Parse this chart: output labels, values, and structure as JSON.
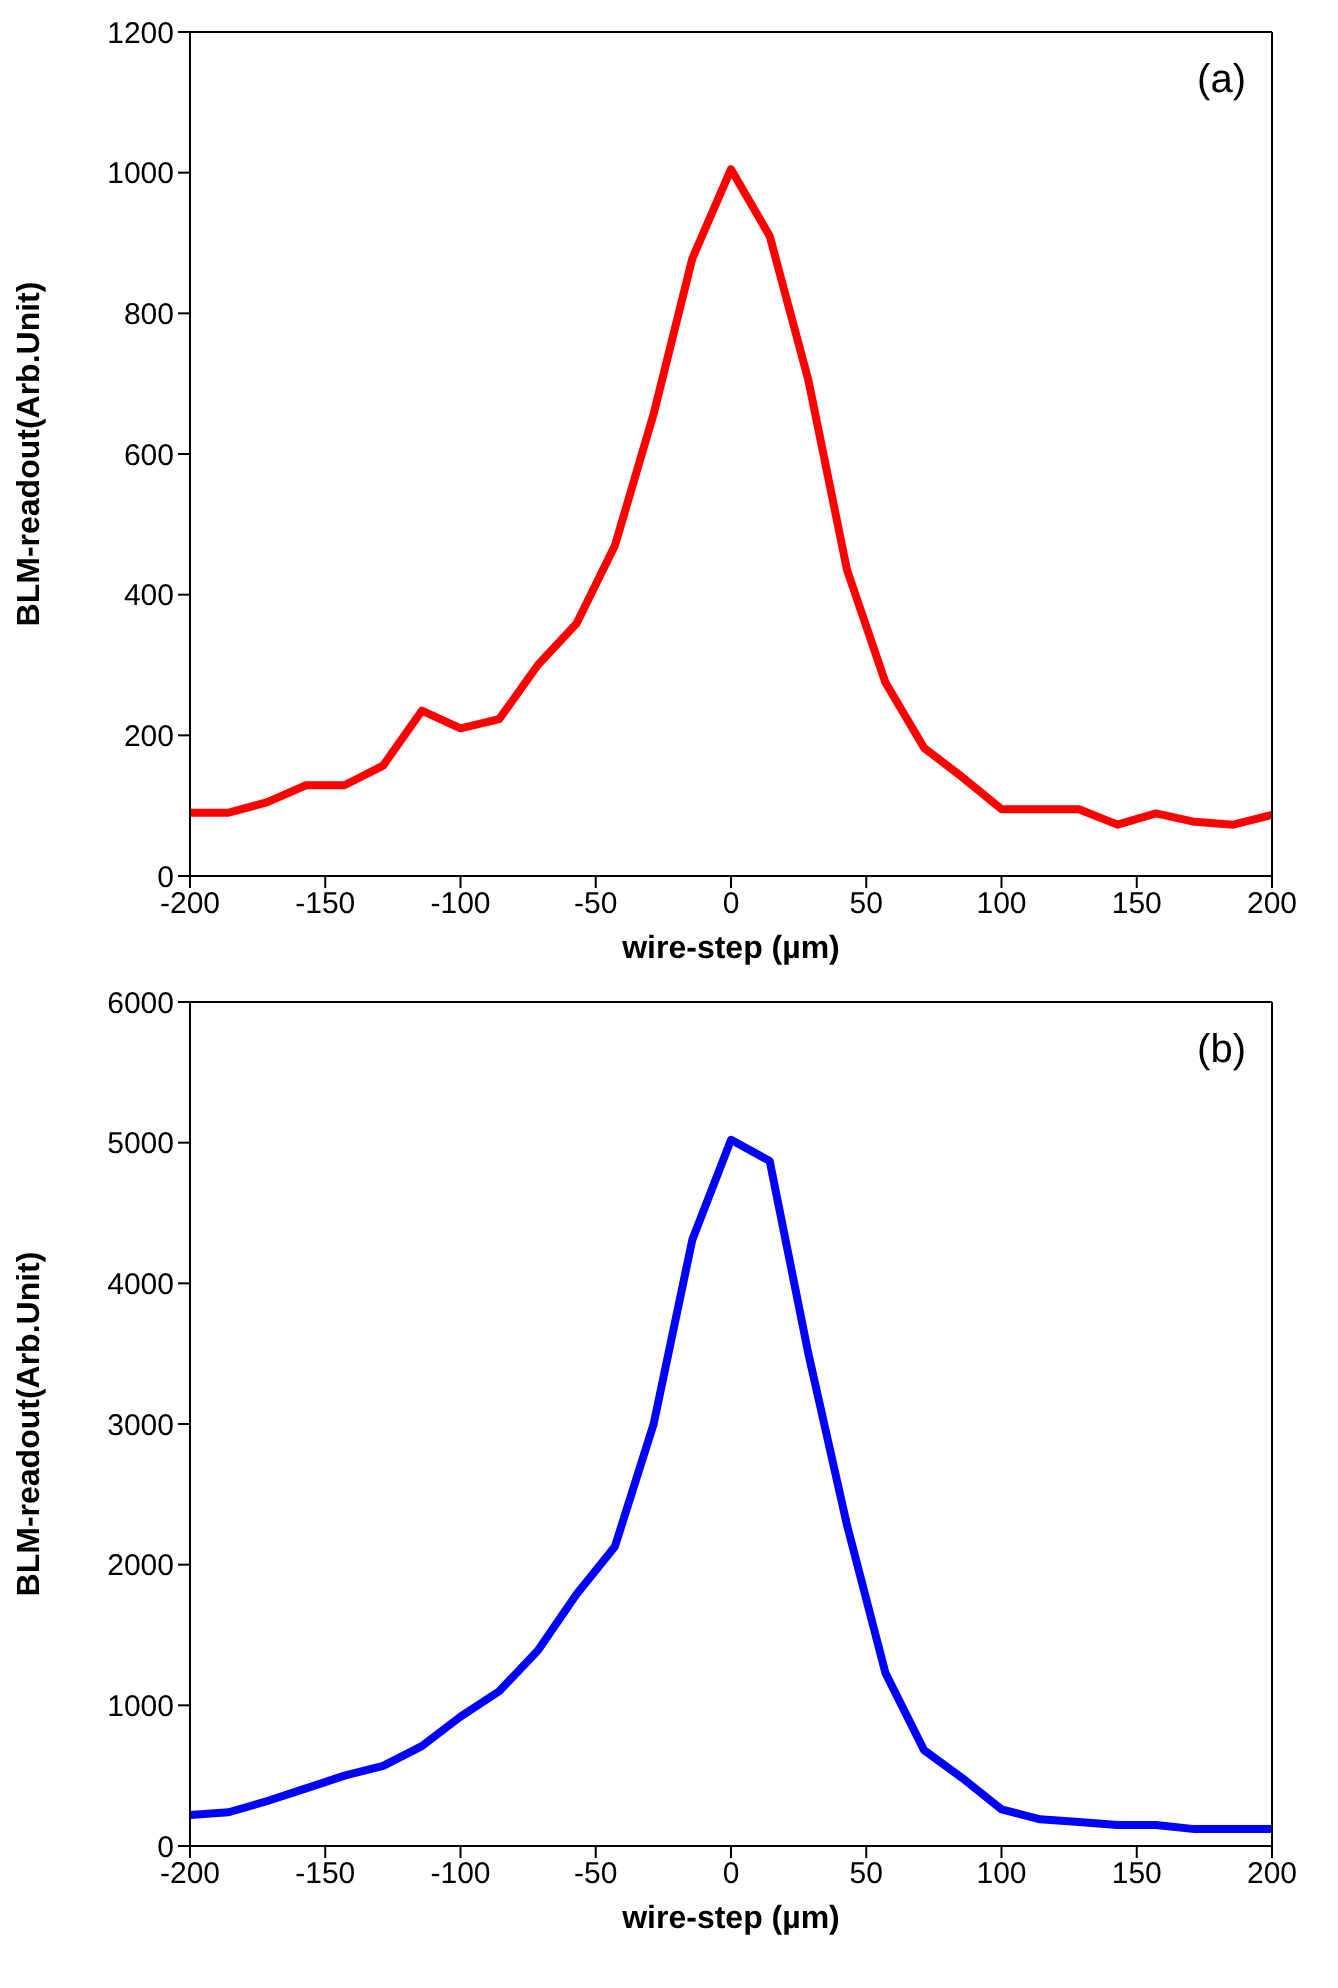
{
  "chart_data": [
    {
      "type": "line",
      "xlabel": "wire-step (µm)",
      "ylabel": "BLM-readout(Arb.Unit)",
      "annotations": [
        "(a)"
      ],
      "x": [
        -200,
        -185.7,
        -171.4,
        -157.1,
        -142.9,
        -128.6,
        -114.3,
        -100,
        -85.7,
        -71.4,
        -57.1,
        -42.9,
        -28.6,
        -14.3,
        0,
        14.3,
        28.6,
        42.9,
        57.1,
        71.4,
        85.7,
        100,
        114.3,
        128.6,
        142.9,
        157.1,
        171.4,
        185.7,
        200
      ],
      "series": [
        {
          "color": "#ff0000",
          "values": [
            90,
            90,
            105,
            129,
            129,
            157,
            235,
            210,
            223,
            300,
            359,
            470,
            657,
            878,
            1005,
            910,
            705,
            435,
            275,
            182,
            140,
            95,
            95,
            95,
            73,
            89,
            77,
            73,
            87
          ]
        }
      ],
      "xlim": [
        -200,
        200
      ],
      "xticks": [
        -200,
        -150,
        -100,
        -50,
        0,
        50,
        100,
        150,
        200
      ],
      "ylim": [
        0,
        1200
      ],
      "yticks": [
        0,
        200,
        400,
        600,
        800,
        1000,
        1200
      ]
    },
    {
      "type": "line",
      "xlabel": "wire-step (µm)",
      "ylabel": "BLM-readout(Arb.Unit)",
      "annotations": [
        "(b)"
      ],
      "x": [
        -200,
        -185.7,
        -171.4,
        -157.1,
        -142.9,
        -128.6,
        -114.3,
        -100,
        -85.7,
        -71.4,
        -57.1,
        -42.9,
        -28.6,
        -14.3,
        0,
        14.3,
        28.6,
        42.9,
        57.1,
        71.4,
        85.7,
        100,
        114.3,
        128.6,
        142.9,
        157.1,
        171.4,
        185.7,
        200
      ],
      "series": [
        {
          "color": "#0000ff",
          "values": [
            220,
            240,
            320,
            410,
            500,
            570,
            710,
            920,
            1100,
            1390,
            1790,
            2130,
            3000,
            4310,
            5020,
            4870,
            3500,
            2280,
            1230,
            680,
            480,
            260,
            190,
            170,
            150,
            150,
            120,
            120,
            120
          ]
        }
      ],
      "xlim": [
        -200,
        200
      ],
      "xticks": [
        -200,
        -150,
        -100,
        -50,
        0,
        50,
        100,
        150,
        200
      ],
      "ylim": [
        0,
        6000
      ],
      "yticks": [
        0,
        1000,
        2000,
        3000,
        4000,
        5000,
        6000
      ]
    }
  ]
}
